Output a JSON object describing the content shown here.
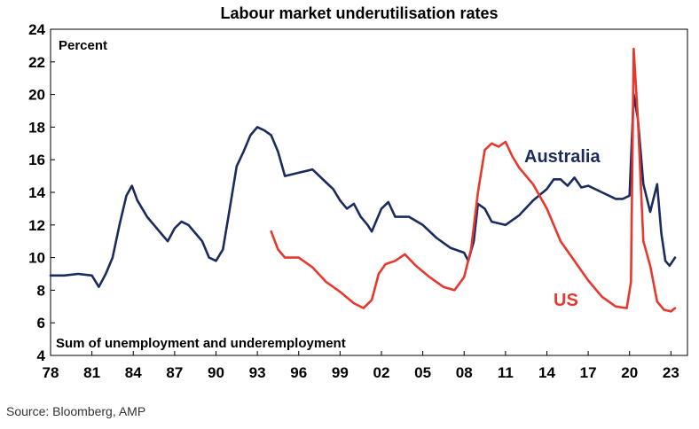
{
  "chart_data": {
    "type": "line",
    "title": "Labour market underutilisation rates",
    "ylabel": "Percent",
    "note": "Sum of unemployment and underemployment",
    "source": "Source: Bloomberg, AMP",
    "ylim": [
      4,
      24
    ],
    "y_ticks": [
      4,
      6,
      8,
      10,
      12,
      14,
      16,
      18,
      20,
      22,
      24
    ],
    "xlim": [
      1978,
      2024.2
    ],
    "x_ticks": [
      1978,
      1981,
      1984,
      1987,
      1990,
      1993,
      1996,
      1999,
      2002,
      2005,
      2008,
      2011,
      2014,
      2017,
      2020,
      2023
    ],
    "x_tick_labels": [
      "78",
      "81",
      "84",
      "87",
      "90",
      "93",
      "96",
      "99",
      "02",
      "05",
      "08",
      "11",
      "14",
      "17",
      "20",
      "23"
    ],
    "grid": false,
    "series": [
      {
        "name": "Australia",
        "color": "#1a2b5e",
        "x": [
          1978.0,
          1979.0,
          1980.0,
          1981.0,
          1981.5,
          1982.0,
          1982.5,
          1983.0,
          1983.5,
          1983.9,
          1984.3,
          1985.0,
          1986.0,
          1986.5,
          1987.0,
          1987.5,
          1988.0,
          1988.5,
          1989.0,
          1989.5,
          1990.0,
          1990.5,
          1991.0,
          1991.5,
          1992.0,
          1992.5,
          1993.0,
          1993.5,
          1994.0,
          1994.5,
          1995.0,
          1996.0,
          1997.0,
          1998.0,
          1998.5,
          1999.0,
          1999.5,
          2000.0,
          2000.5,
          2001.0,
          2001.3,
          2002.0,
          2002.5,
          2003.0,
          2004.0,
          2005.0,
          2006.0,
          2007.0,
          2008.0,
          2008.3,
          2008.7,
          2009.0,
          2009.5,
          2010.0,
          2011.0,
          2012.0,
          2013.0,
          2014.0,
          2014.5,
          2015.0,
          2015.5,
          2016.0,
          2016.5,
          2017.0,
          2018.0,
          2019.0,
          2019.5,
          2020.0,
          2020.3,
          2020.6,
          2021.0,
          2021.5,
          2022.0,
          2022.3,
          2022.6,
          2022.9,
          2023.3
        ],
        "values": [
          8.9,
          8.9,
          9.0,
          8.9,
          8.2,
          9.0,
          10.0,
          12.0,
          13.8,
          14.4,
          13.5,
          12.5,
          11.5,
          11.0,
          11.8,
          12.2,
          12.0,
          11.5,
          11.0,
          10.0,
          9.8,
          10.5,
          13.0,
          15.6,
          16.5,
          17.5,
          18.0,
          17.8,
          17.5,
          16.5,
          15.0,
          15.2,
          15.4,
          14.6,
          14.2,
          13.5,
          13.0,
          13.3,
          12.5,
          12.0,
          11.6,
          13.0,
          13.4,
          12.5,
          12.5,
          12.0,
          11.2,
          10.6,
          10.3,
          9.8,
          11.0,
          13.3,
          13.0,
          12.2,
          12.0,
          12.6,
          13.5,
          14.2,
          14.8,
          14.8,
          14.4,
          14.9,
          14.3,
          14.4,
          14.0,
          13.6,
          13.6,
          13.8,
          20.0,
          18.5,
          14.5,
          12.8,
          14.5,
          11.5,
          9.8,
          9.5,
          10.0
        ]
      },
      {
        "name": "US",
        "color": "#e8382e",
        "x": [
          1994.0,
          1994.5,
          1995.0,
          1996.0,
          1997.0,
          1998.0,
          1999.0,
          2000.0,
          2000.7,
          2001.3,
          2001.8,
          2002.3,
          2003.0,
          2003.7,
          2004.5,
          2005.5,
          2006.5,
          2007.3,
          2008.0,
          2008.5,
          2009.0,
          2009.5,
          2010.0,
          2010.5,
          2011.0,
          2011.5,
          2012.0,
          2013.0,
          2014.0,
          2015.0,
          2016.0,
          2017.0,
          2018.0,
          2019.0,
          2019.8,
          2020.1,
          2020.3,
          2020.6,
          2021.0,
          2021.5,
          2022.0,
          2022.5,
          2023.0,
          2023.3
        ],
        "values": [
          11.6,
          10.5,
          10.0,
          10.0,
          9.4,
          8.5,
          7.9,
          7.2,
          6.9,
          7.4,
          9.0,
          9.6,
          9.8,
          10.2,
          9.5,
          8.8,
          8.2,
          8.0,
          8.8,
          10.5,
          14.0,
          16.6,
          17.0,
          16.8,
          17.1,
          16.2,
          15.5,
          14.5,
          13.0,
          11.0,
          9.8,
          8.6,
          7.6,
          7.0,
          6.9,
          8.5,
          22.8,
          18.5,
          11.0,
          9.5,
          7.3,
          6.8,
          6.7,
          6.9
        ]
      }
    ]
  }
}
